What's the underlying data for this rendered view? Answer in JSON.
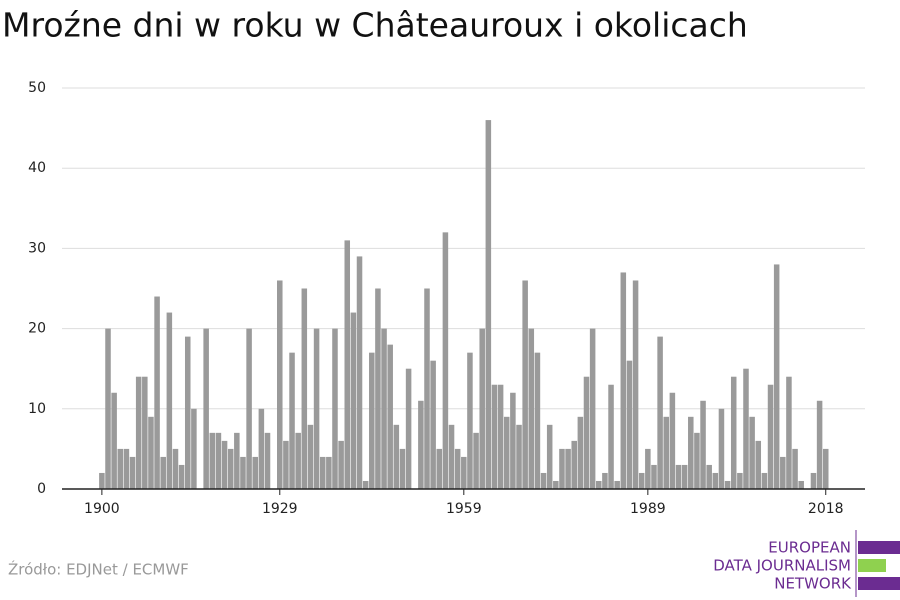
{
  "chart_data": {
    "type": "bar",
    "title": "Mroźne dni w roku w Châteauroux i okolicach",
    "source": "Źródło: EDJNet / ECMWF",
    "logo": [
      "EUROPEAN",
      "DATA JOURNALISM",
      "NETWORK"
    ],
    "x": [
      1900,
      1901,
      1902,
      1903,
      1904,
      1905,
      1906,
      1907,
      1908,
      1909,
      1910,
      1911,
      1912,
      1913,
      1914,
      1915,
      1916,
      1917,
      1918,
      1919,
      1920,
      1921,
      1922,
      1923,
      1924,
      1925,
      1926,
      1927,
      1928,
      1929,
      1930,
      1931,
      1932,
      1933,
      1934,
      1935,
      1936,
      1937,
      1938,
      1939,
      1940,
      1941,
      1942,
      1943,
      1944,
      1945,
      1946,
      1947,
      1948,
      1949,
      1950,
      1951,
      1952,
      1953,
      1954,
      1955,
      1956,
      1957,
      1958,
      1959,
      1960,
      1961,
      1962,
      1963,
      1964,
      1965,
      1966,
      1967,
      1968,
      1969,
      1970,
      1971,
      1972,
      1973,
      1974,
      1975,
      1976,
      1977,
      1978,
      1979,
      1980,
      1981,
      1982,
      1983,
      1984,
      1985,
      1986,
      1987,
      1988,
      1989,
      1990,
      1991,
      1992,
      1993,
      1994,
      1995,
      1996,
      1997,
      1998,
      1999,
      2000,
      2001,
      2002,
      2003,
      2004,
      2005,
      2006,
      2007,
      2008,
      2009,
      2010,
      2011,
      2012,
      2013,
      2014,
      2015,
      2016,
      2017,
      2018
    ],
    "values": [
      2,
      20,
      12,
      5,
      5,
      4,
      14,
      14,
      9,
      24,
      4,
      22,
      5,
      3,
      19,
      10,
      0,
      20,
      7,
      7,
      6,
      5,
      7,
      4,
      20,
      4,
      10,
      7,
      0,
      26,
      6,
      17,
      7,
      25,
      8,
      20,
      4,
      4,
      20,
      6,
      31,
      22,
      29,
      1,
      17,
      25,
      20,
      18,
      8,
      5,
      15,
      0,
      11,
      25,
      16,
      5,
      32,
      8,
      5,
      4,
      17,
      7,
      20,
      46,
      13,
      13,
      9,
      12,
      8,
      26,
      20,
      17,
      2,
      8,
      1,
      5,
      5,
      6,
      9,
      14,
      20,
      1,
      2,
      13,
      1,
      27,
      16,
      26,
      2,
      5,
      3,
      19,
      9,
      12,
      3,
      3,
      9,
      7,
      11,
      3,
      2,
      10,
      1,
      14,
      2,
      15,
      9,
      6,
      2,
      13,
      28,
      4,
      14,
      5,
      1,
      0,
      2,
      11,
      5
    ],
    "color": "#9a9a9a",
    "xlim": [
      1893.5,
      2024.4
    ],
    "xticks": [
      1900,
      1929,
      1959,
      1989,
      2018
    ],
    "ylim": [
      0,
      50
    ],
    "yticks": [
      0,
      10,
      20,
      30,
      40,
      50
    ],
    "grid": true
  }
}
